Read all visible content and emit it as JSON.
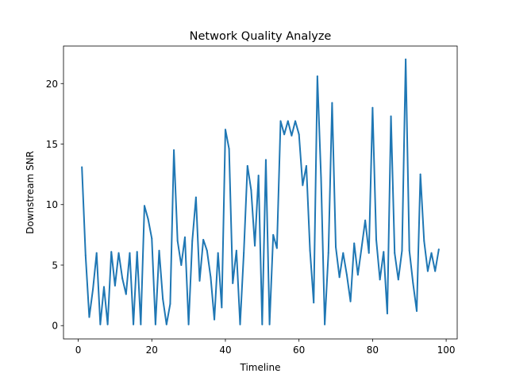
{
  "chart_data": {
    "type": "line",
    "title": "Network Quality Analyze",
    "xlabel": "Timeline",
    "ylabel": "Downstream SNR",
    "xlim": [
      -4,
      103
    ],
    "ylim": [
      -1.1,
      23.1
    ],
    "xticks": [
      0,
      20,
      40,
      60,
      80,
      100
    ],
    "yticks": [
      0,
      5,
      10,
      15,
      20
    ],
    "grid": false,
    "line_color": "#1f77b4",
    "series": [
      {
        "x": [
          1,
          2,
          3,
          4,
          5,
          6,
          7,
          8,
          9,
          10,
          11,
          12,
          13,
          14,
          15,
          16,
          17,
          18,
          19,
          20,
          21,
          22,
          23,
          24,
          25,
          26,
          27,
          28,
          29,
          30,
          31,
          32,
          33,
          34,
          35,
          36,
          37,
          38,
          39,
          40,
          41,
          42,
          43,
          44,
          45,
          46,
          47,
          48,
          49,
          50,
          51,
          52,
          53,
          54,
          55,
          56,
          57,
          58,
          59,
          60,
          61,
          62,
          63,
          64,
          65,
          66,
          67,
          68,
          69,
          70,
          71,
          72,
          73,
          74,
          75,
          76,
          77,
          78,
          79,
          80,
          81,
          82,
          83,
          84,
          85,
          86,
          87,
          88,
          89,
          90,
          91,
          92,
          93,
          94,
          95,
          96,
          97,
          98
        ],
        "values": [
          13.1,
          5.8,
          0.7,
          3.0,
          6.0,
          0.1,
          3.2,
          0.1,
          6.1,
          3.3,
          6.0,
          3.9,
          2.6,
          6.0,
          0.1,
          6.1,
          0.1,
          9.9,
          8.8,
          7.2,
          0.1,
          6.2,
          2.2,
          0.1,
          1.8,
          14.5,
          7.0,
          5.0,
          7.3,
          0.1,
          7.0,
          10.6,
          3.7,
          7.1,
          6.2,
          4.0,
          0.5,
          6.0,
          1.5,
          16.2,
          14.6,
          3.5,
          6.2,
          0.1,
          6.0,
          13.2,
          11.2,
          6.6,
          12.4,
          0.1,
          13.7,
          0.1,
          7.5,
          6.4,
          16.9,
          15.8,
          16.9,
          15.7,
          16.9,
          15.8,
          11.6,
          13.2,
          6.2,
          1.9,
          20.6,
          12.2,
          0.1,
          6.0,
          18.4,
          6.5,
          4.0,
          6.0,
          4.2,
          2.0,
          6.8,
          4.2,
          6.4,
          8.7,
          6.0,
          18.0,
          7.1,
          3.8,
          6.1,
          1.0,
          17.3,
          6.0,
          3.8,
          6.2,
          22.0,
          6.2,
          3.5,
          1.2,
          12.5,
          7.0,
          4.5,
          6.0,
          4.5,
          6.3
        ]
      }
    ]
  }
}
